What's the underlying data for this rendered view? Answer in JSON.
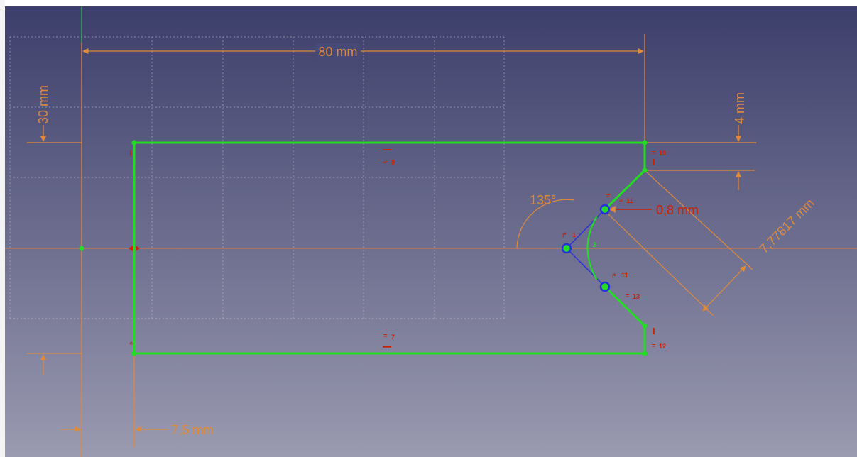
{
  "colors": {
    "bg_top": "#3b3d6a",
    "bg_bottom": "#9a9ab0",
    "left_strip": "#f4f4f6",
    "geometry": "#22dd22",
    "construction": "#2a2fd8",
    "dimension": "#e08a3a",
    "constraint": "#cc2200",
    "grid": "#c8c8d8"
  },
  "dimensions": {
    "width": "80 mm",
    "height": "30 mm",
    "right_step": "4 mm",
    "inset": "7,5 mm",
    "radius": "0,8 mm",
    "angle": "135°",
    "diagonal": "7,77817 mm"
  },
  "constraints": {
    "top_eq": "=",
    "top_idx": "9",
    "bottom_eq": "=",
    "bottom_idx": "7",
    "right_top_idx": "10",
    "right_bottom_idx": "12",
    "mid_top_idx": "11",
    "mid_low_idx": "13",
    "arc_idx": "2",
    "tangent_top": "1",
    "tangent_bottom": "11"
  },
  "icons": {
    "horizontal_constraint": "horizontal-constraint-icon",
    "vertical_constraint": "vertical-constraint-icon",
    "equal_constraint": "equal-constraint-icon",
    "tangent_constraint": "tangent-constraint-icon",
    "symmetric_constraint": "symmetric-constraint-icon"
  }
}
